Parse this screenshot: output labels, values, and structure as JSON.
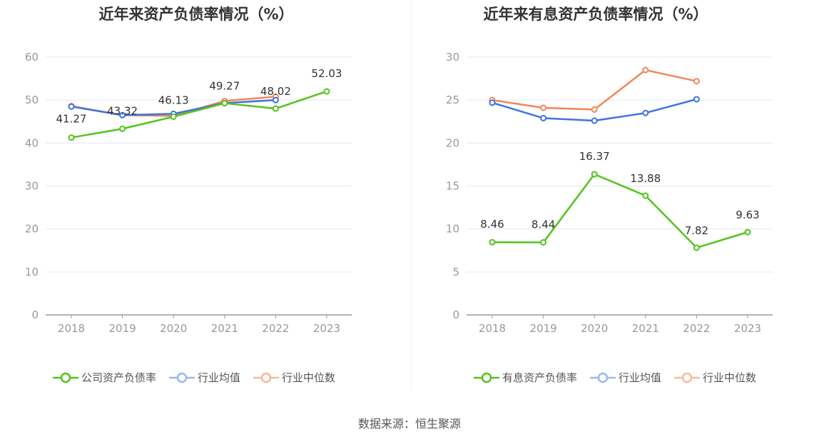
{
  "source_text": "数据来源：恒生聚源",
  "chart_data": [
    {
      "type": "line",
      "title": "近年来资产负债率情况（%）",
      "x": [
        "2018",
        "2019",
        "2020",
        "2021",
        "2022",
        "2023"
      ],
      "ylim": [
        0,
        60
      ],
      "yticks": [
        0,
        10,
        20,
        30,
        40,
        50,
        60
      ],
      "grid": true,
      "legend_position": "bottom",
      "series": [
        {
          "name": "公司资产负债率",
          "color": "#52c41a",
          "values": [
            41.27,
            43.32,
            46.13,
            49.27,
            48.02,
            52.03
          ],
          "labels": [
            "41.27",
            "43.32",
            "46.13",
            "49.27",
            "48.02",
            "52.03"
          ]
        },
        {
          "name": "行业均值",
          "color": "#3f73e0",
          "values": [
            48.5,
            46.5,
            46.8,
            49.3,
            50.0,
            null
          ],
          "labels": []
        },
        {
          "name": "行业中位数",
          "color": "#f0875a",
          "values": [
            48.6,
            46.5,
            46.3,
            49.8,
            50.8,
            null
          ],
          "labels": []
        }
      ]
    },
    {
      "type": "line",
      "title": "近年来有息资产负债率情况（%）",
      "x": [
        "2018",
        "2019",
        "2020",
        "2021",
        "2022",
        "2023"
      ],
      "ylim": [
        0,
        30
      ],
      "yticks": [
        0,
        5,
        10,
        15,
        20,
        25,
        30
      ],
      "grid": true,
      "legend_position": "bottom",
      "series": [
        {
          "name": "有息资产负债率",
          "color": "#52c41a",
          "values": [
            8.46,
            8.44,
            16.37,
            13.88,
            7.82,
            9.63
          ],
          "labels": [
            "8.46",
            "8.44",
            "16.37",
            "13.88",
            "7.82",
            "9.63"
          ]
        },
        {
          "name": "行业均值",
          "color": "#3f73e0",
          "values": [
            24.7,
            22.9,
            22.6,
            23.5,
            25.1,
            null
          ],
          "labels": []
        },
        {
          "name": "行业中位数",
          "color": "#f0875a",
          "values": [
            25.0,
            24.1,
            23.9,
            28.5,
            27.2,
            null
          ],
          "labels": []
        }
      ]
    }
  ]
}
